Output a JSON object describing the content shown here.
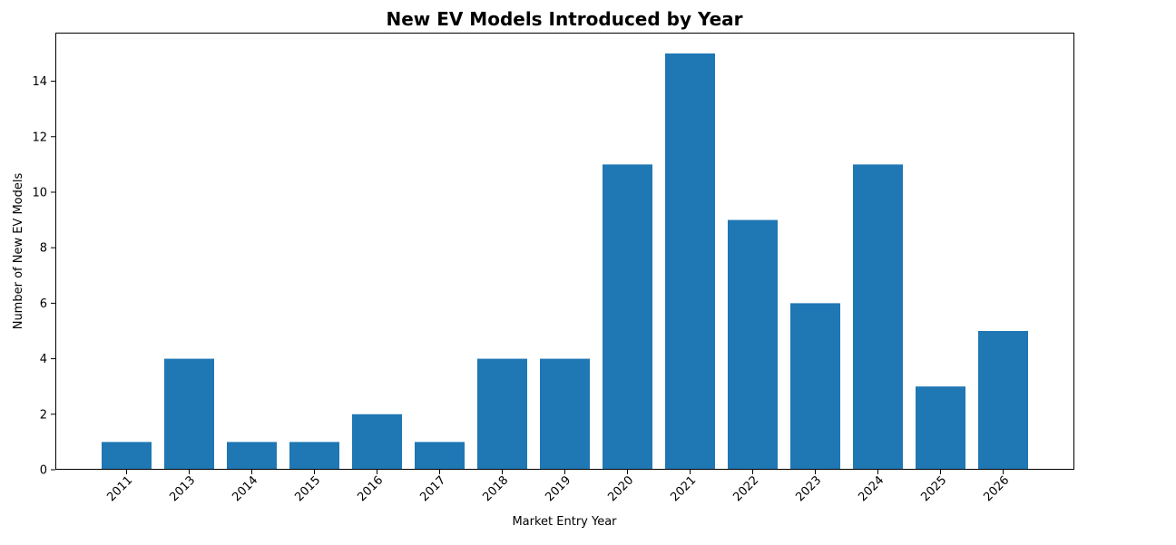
{
  "chart_data": {
    "type": "bar",
    "title": "New EV Models Introduced by Year",
    "xlabel": "Market Entry Year",
    "ylabel": "Number of New EV Models",
    "categories": [
      "2011",
      "2013",
      "2014",
      "2015",
      "2016",
      "2017",
      "2018",
      "2019",
      "2020",
      "2021",
      "2022",
      "2023",
      "2024",
      "2025",
      "2026"
    ],
    "values": [
      1,
      4,
      1,
      1,
      2,
      1,
      4,
      4,
      11,
      15,
      9,
      6,
      11,
      3,
      5
    ],
    "ylim": [
      0,
      15.75
    ],
    "yticks": [
      0,
      2,
      4,
      6,
      8,
      10,
      12,
      14
    ],
    "bar_color": "#1f77b4",
    "grid": false,
    "legend": "none"
  }
}
